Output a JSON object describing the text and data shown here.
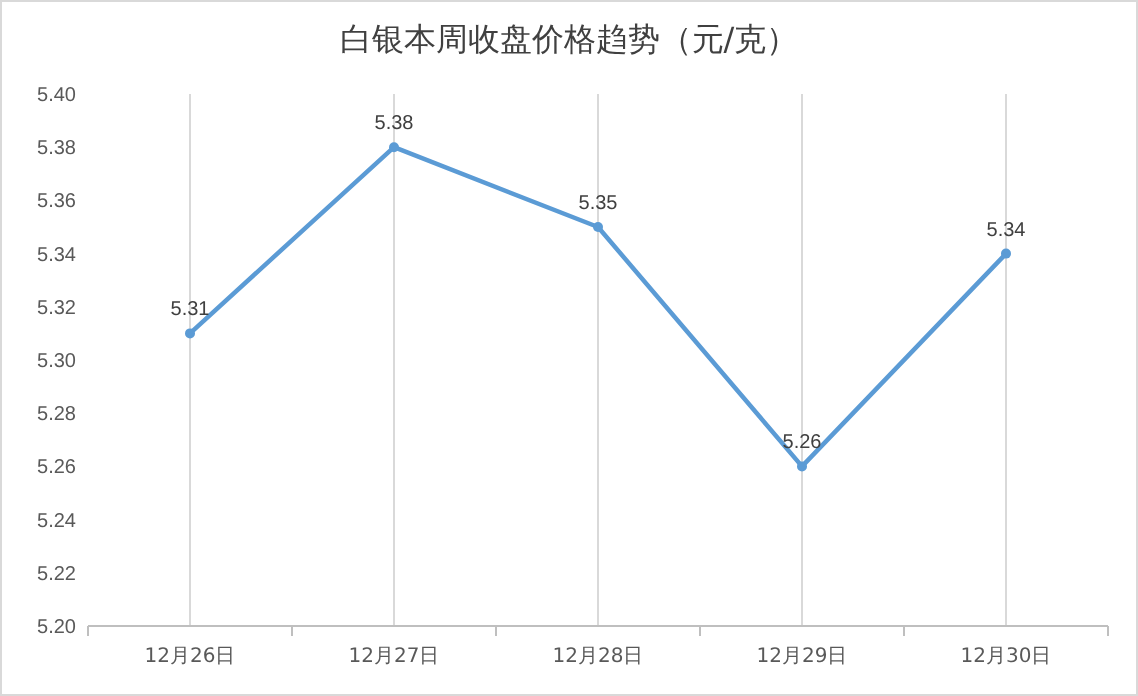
{
  "chart_data": {
    "type": "line",
    "title": "白银本周收盘价格趋势（元/克）",
    "categories": [
      "12月26日",
      "12月27日",
      "12月28日",
      "12月29日",
      "12月30日"
    ],
    "series": [
      {
        "color": "#5b9bd5",
        "values": [
          5.31,
          5.38,
          5.35,
          5.26,
          5.34
        ]
      }
    ],
    "ylim": [
      5.2,
      5.4
    ],
    "yticks": [
      {
        "value": 5.2,
        "label": "5.20"
      },
      {
        "value": 5.22,
        "label": "5.22"
      },
      {
        "value": 5.24,
        "label": "5.24"
      },
      {
        "value": 5.26,
        "label": "5.26"
      },
      {
        "value": 5.28,
        "label": "5.28"
      },
      {
        "value": 5.3,
        "label": "5.30"
      },
      {
        "value": 5.32,
        "label": "5.32"
      },
      {
        "value": 5.34,
        "label": "5.34"
      },
      {
        "value": 5.36,
        "label": "5.36"
      },
      {
        "value": 5.38,
        "label": "5.38"
      },
      {
        "value": 5.4,
        "label": "5.40"
      }
    ],
    "grid": "x",
    "data_labels": true,
    "marker": "circle",
    "line_style": "solid"
  }
}
